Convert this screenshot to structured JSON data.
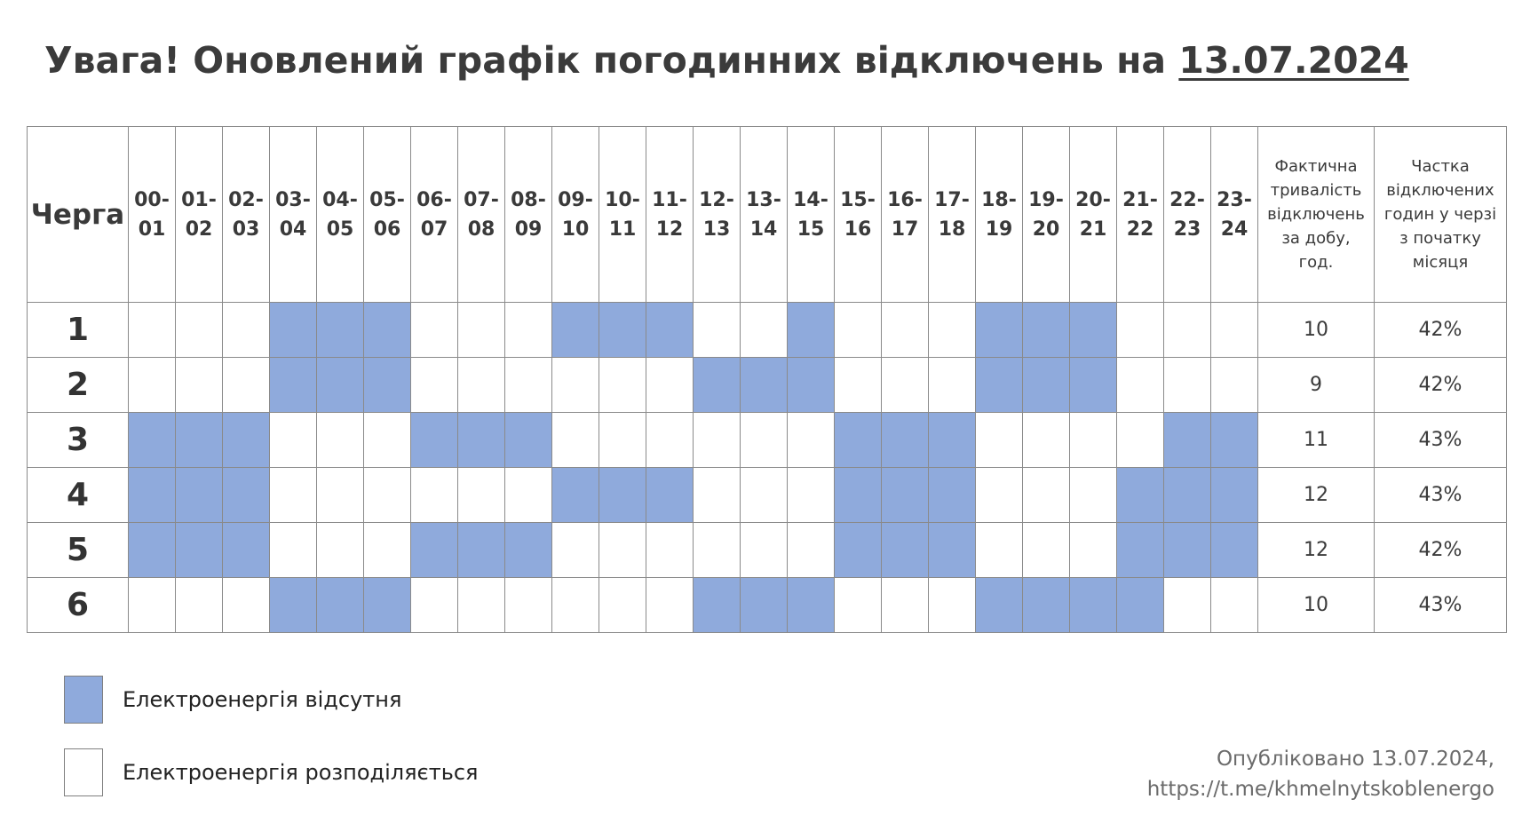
{
  "title": {
    "prefix": "Увага! Оновлений графік погодинних відключень на",
    "date": "13.07.2024"
  },
  "table": {
    "queue_header": "Черга",
    "hours": [
      [
        "00-",
        "01"
      ],
      [
        "01-",
        "02"
      ],
      [
        "02-",
        "03"
      ],
      [
        "03-",
        "04"
      ],
      [
        "04-",
        "05"
      ],
      [
        "05-",
        "06"
      ],
      [
        "06-",
        "07"
      ],
      [
        "07-",
        "08"
      ],
      [
        "08-",
        "09"
      ],
      [
        "09-",
        "10"
      ],
      [
        "10-",
        "11"
      ],
      [
        "11-",
        "12"
      ],
      [
        "12-",
        "13"
      ],
      [
        "13-",
        "14"
      ],
      [
        "14-",
        "15"
      ],
      [
        "15-",
        "16"
      ],
      [
        "16-",
        "17"
      ],
      [
        "17-",
        "18"
      ],
      [
        "18-",
        "19"
      ],
      [
        "19-",
        "20"
      ],
      [
        "20-",
        "21"
      ],
      [
        "21-",
        "22"
      ],
      [
        "22-",
        "23"
      ],
      [
        "23-",
        "24"
      ]
    ],
    "duration_header": [
      "Фактична",
      "тривалість",
      "відключень",
      "за добу,",
      "год."
    ],
    "share_header": [
      "Частка",
      "відключених",
      "годин у черзі",
      "з початку",
      "місяця"
    ],
    "rows": [
      {
        "queue": "1",
        "off_hours": [
          3,
          4,
          5,
          9,
          10,
          11,
          14,
          18,
          19,
          20
        ],
        "duration": "10",
        "share": "42%"
      },
      {
        "queue": "2",
        "off_hours": [
          3,
          4,
          5,
          12,
          13,
          14,
          18,
          19,
          20
        ],
        "duration": "9",
        "share": "42%"
      },
      {
        "queue": "3",
        "off_hours": [
          0,
          1,
          2,
          6,
          7,
          8,
          15,
          16,
          17,
          22,
          23
        ],
        "duration": "11",
        "share": "43%"
      },
      {
        "queue": "4",
        "off_hours": [
          0,
          1,
          2,
          9,
          10,
          11,
          15,
          16,
          17,
          21,
          22,
          23
        ],
        "duration": "12",
        "share": "43%"
      },
      {
        "queue": "5",
        "off_hours": [
          0,
          1,
          2,
          6,
          7,
          8,
          15,
          16,
          17,
          21,
          22,
          23
        ],
        "duration": "12",
        "share": "42%"
      },
      {
        "queue": "6",
        "off_hours": [
          3,
          4,
          5,
          12,
          13,
          14,
          18,
          19,
          20,
          21
        ],
        "duration": "10",
        "share": "43%"
      }
    ]
  },
  "colors": {
    "off": "#8faadc",
    "on": "#ffffff"
  },
  "legend": {
    "off_label": "Електроенергія відсутня",
    "on_label": "Електроенергія розподіляється"
  },
  "footer": {
    "published": "Опубліковано 13.07.2024,",
    "link": "https://t.me/khmelnytskoblenergo"
  }
}
